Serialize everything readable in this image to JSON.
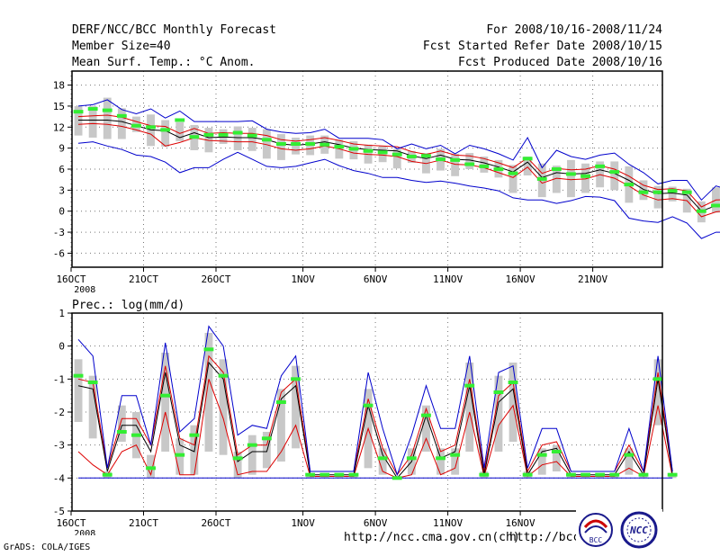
{
  "header": {
    "title": "DERF/NCC/BCC Monthly Forecast",
    "member_size": "Member Size=40",
    "variable": "Mean Surf. Temp.: °C Anom.",
    "period": "For 2008/10/16-2008/11/24",
    "started": "Fcst Started Refer Date 2008/10/15",
    "produced": "Fcst Produced Date 2008/10/16"
  },
  "footer": {
    "grads": "GrADS: COLA/IGES",
    "url1": "http://ncc.cma.gov.cn(ch)",
    "url2": "http://bcc.",
    "logo_left": "BCC",
    "logo_right": "NCC"
  },
  "colors": {
    "ensemble_box": "#c8c8c8",
    "median": "#33ee33",
    "mean": "#000000",
    "spread": "#dd0000",
    "envelope": "#0000cc"
  },
  "chart_data": [
    {
      "type": "box-plume",
      "title": "Mean Surf. Temp.: °C Anom.",
      "x_tick_labels": [
        "16OCT",
        "21OCT",
        "26OCT",
        "1NOV",
        "6NOV",
        "11NOV",
        "16NOV",
        "21NOV"
      ],
      "x_tick_days": [
        0,
        5,
        10,
        16,
        21,
        26,
        31,
        36
      ],
      "x_sub_label": "2008",
      "ylim": [
        -8,
        20
      ],
      "y_ticks": [
        -6,
        -3,
        0,
        3,
        6,
        9,
        12,
        15,
        18
      ],
      "mean": [
        13.0,
        13.0,
        13.0,
        12.8,
        12.2,
        11.6,
        11.5,
        10.5,
        11.2,
        10.5,
        10.6,
        10.5,
        10.5,
        10.2,
        9.6,
        9.4,
        9.6,
        9.9,
        9.5,
        9.0,
        8.8,
        8.7,
        8.6,
        7.9,
        7.5,
        8.0,
        7.4,
        7.3,
        6.9,
        6.3,
        5.6,
        7.0,
        4.8,
        5.5,
        5.3,
        5.4,
        5.9,
        5.4,
        4.4,
        3.1,
        2.5,
        2.6,
        2.3,
        0.0,
        0.8,
        0.9
      ],
      "upper": [
        13.5,
        13.6,
        13.7,
        13.4,
        12.8,
        12.2,
        12.1,
        11.1,
        11.8,
        11.1,
        11.2,
        11.1,
        11.1,
        10.8,
        10.2,
        10.0,
        10.2,
        10.5,
        10.1,
        9.6,
        9.4,
        9.3,
        9.2,
        8.5,
        8.1,
        8.6,
        8.0,
        7.9,
        7.5,
        6.9,
        6.2,
        7.6,
        5.4,
        6.1,
        5.9,
        6.0,
        6.5,
        6.0,
        5.0,
        3.7,
        3.1,
        3.2,
        2.9,
        0.6,
        1.6,
        1.7
      ],
      "lower": [
        12.4,
        12.5,
        12.4,
        12.1,
        11.6,
        11.0,
        9.3,
        9.8,
        10.5,
        10.1,
        10.0,
        9.9,
        9.9,
        9.5,
        8.9,
        8.7,
        8.9,
        9.3,
        8.9,
        8.3,
        8.1,
        8.0,
        7.8,
        7.1,
        6.8,
        7.3,
        6.7,
        6.6,
        6.2,
        5.5,
        4.8,
        6.3,
        4.0,
        4.7,
        4.5,
        4.6,
        5.2,
        4.7,
        3.6,
        2.3,
        1.6,
        1.8,
        1.5,
        -0.8,
        -0.1,
        0.1
      ],
      "max": [
        15.0,
        15.2,
        15.9,
        14.5,
        13.9,
        14.6,
        13.3,
        14.3,
        12.8,
        12.8,
        12.8,
        12.8,
        12.9,
        11.7,
        11.3,
        11.1,
        11.2,
        11.7,
        10.4,
        10.4,
        10.4,
        10.2,
        8.9,
        9.6,
        8.9,
        9.4,
        8.2,
        9.4,
        8.9,
        8.2,
        7.3,
        10.5,
        6.2,
        8.7,
        7.8,
        7.4,
        8.0,
        8.3,
        6.7,
        5.5,
        3.9,
        4.4,
        4.4,
        1.6,
        3.6,
        3.0
      ],
      "min": [
        9.7,
        9.9,
        9.3,
        8.8,
        8.0,
        7.8,
        7.0,
        5.5,
        6.2,
        6.2,
        7.4,
        8.4,
        7.4,
        6.4,
        6.2,
        6.4,
        6.9,
        7.4,
        6.5,
        5.8,
        5.4,
        4.8,
        4.8,
        4.4,
        4.1,
        4.3,
        4.0,
        3.6,
        3.3,
        2.9,
        1.9,
        1.6,
        1.6,
        1.1,
        1.5,
        2.1,
        2.0,
        1.5,
        -1.0,
        -1.4,
        -1.6,
        -0.8,
        -1.7,
        -3.9,
        -3.0,
        -3.0
      ],
      "median": [
        14.2,
        14.6,
        14.4,
        13.6,
        12.2,
        12.0,
        11.6,
        13.0,
        10.6,
        10.9,
        10.9,
        11.2,
        10.8,
        10.2,
        9.6,
        9.6,
        9.6,
        9.5,
        9.2,
        8.9,
        8.6,
        8.4,
        8.1,
        7.8,
        7.9,
        7.4,
        7.3,
        6.7,
        6.4,
        6.0,
        5.4,
        7.5,
        4.6,
        6.0,
        5.3,
        5.0,
        6.4,
        5.6,
        3.8,
        2.7,
        2.7,
        2.9,
        2.7,
        0.0,
        0.8,
        1.3
      ],
      "box_hi": [
        15.0,
        15.0,
        16.2,
        14.7,
        13.5,
        13.8,
        13.0,
        12.7,
        12.3,
        11.9,
        11.7,
        12.1,
        11.9,
        11.7,
        11.0,
        10.5,
        10.8,
        10.8,
        10.2,
        10.0,
        9.5,
        9.3,
        8.9,
        8.6,
        8.3,
        8.9,
        8.2,
        8.3,
        7.8,
        7.3,
        6.6,
        7.8,
        6.8,
        6.5,
        7.3,
        6.8,
        7.1,
        7.1,
        6.4,
        4.4,
        3.6,
        3.5,
        3.2,
        1.4,
        3.4,
        3.6
      ],
      "box_lo": [
        10.8,
        10.5,
        10.3,
        10.3,
        11.3,
        9.3,
        9.2,
        10.0,
        8.7,
        8.4,
        9.6,
        8.7,
        8.6,
        7.5,
        7.3,
        8.1,
        8.0,
        8.2,
        7.5,
        7.4,
        6.8,
        7.0,
        6.1,
        6.9,
        5.4,
        5.8,
        5.0,
        6.0,
        5.5,
        4.8,
        2.6,
        5.1,
        2.0,
        2.6,
        2.0,
        2.6,
        3.4,
        3.0,
        1.2,
        1.6,
        0.4,
        1.4,
        -0.2,
        -1.6,
        -0.2,
        -0.3
      ]
    },
    {
      "type": "box-plume",
      "title": "Prec.: log(mm/d)",
      "x_tick_labels": [
        "16OCT",
        "21OCT",
        "26OCT",
        "1NOV",
        "6NOV",
        "11NOV",
        "16NOV"
      ],
      "x_tick_days": [
        0,
        5,
        10,
        16,
        21,
        26,
        31
      ],
      "x_sub_label": "2008",
      "ylim": [
        -5,
        1
      ],
      "y_ticks": [
        -5,
        -4,
        -3,
        -2,
        -1,
        0,
        1
      ],
      "mean": [
        -1.2,
        -1.3,
        -3.8,
        -2.4,
        -2.4,
        -3.2,
        -0.8,
        -3.0,
        -3.2,
        -0.5,
        -1.0,
        -3.5,
        -3.2,
        -3.2,
        -1.6,
        -1.2,
        -3.9,
        -3.9,
        -3.9,
        -3.9,
        -1.8,
        -3.3,
        -4.0,
        -3.5,
        -2.1,
        -3.4,
        -3.2,
        -1.2,
        -3.9,
        -1.7,
        -1.3,
        -3.9,
        -3.2,
        -3.1,
        -3.9,
        -3.9,
        -3.9,
        -3.9,
        -3.2,
        -3.9,
        -1.0,
        -3.9
      ],
      "upper": [
        -1.0,
        -1.1,
        -3.7,
        -2.2,
        -2.2,
        -3.0,
        -0.6,
        -2.8,
        -3.0,
        -0.3,
        -0.8,
        -3.3,
        -3.0,
        -3.0,
        -1.4,
        -1.0,
        -3.8,
        -3.8,
        -3.8,
        -3.8,
        -1.6,
        -3.1,
        -3.9,
        -3.3,
        -1.9,
        -3.2,
        -3.0,
        -1.0,
        -3.8,
        -1.5,
        -1.1,
        -3.8,
        -3.0,
        -2.9,
        -3.8,
        -3.8,
        -3.8,
        -3.8,
        -3.0,
        -3.8,
        -0.8,
        -3.8
      ],
      "lower": [
        -3.2,
        -3.6,
        -3.9,
        -3.2,
        -3.0,
        -3.9,
        -2.0,
        -3.9,
        -3.9,
        -1.0,
        -2.2,
        -3.9,
        -3.8,
        -3.8,
        -3.2,
        -2.4,
        -3.95,
        -3.95,
        -3.95,
        -3.95,
        -2.5,
        -3.8,
        -4.0,
        -3.9,
        -2.8,
        -3.9,
        -3.7,
        -2.0,
        -3.95,
        -2.4,
        -1.8,
        -3.95,
        -3.6,
        -3.5,
        -3.95,
        -3.95,
        -3.95,
        -3.95,
        -3.7,
        -3.95,
        -1.8,
        -3.95
      ],
      "max": [
        0.2,
        -0.3,
        -3.7,
        -1.5,
        -1.5,
        -3.0,
        0.1,
        -2.6,
        -2.2,
        0.6,
        0.0,
        -2.7,
        -2.4,
        -2.5,
        -0.9,
        -0.3,
        -3.8,
        -3.8,
        -3.8,
        -3.8,
        -0.8,
        -2.5,
        -3.9,
        -2.7,
        -1.2,
        -2.5,
        -2.5,
        -0.3,
        -3.7,
        -0.8,
        -0.6,
        -3.7,
        -2.5,
        -2.5,
        -3.8,
        -3.8,
        -3.8,
        -3.8,
        -2.5,
        -3.8,
        -0.3,
        -3.8
      ],
      "min": [
        -4.0,
        -4.0,
        -4.0,
        -4.0,
        -4.0,
        -4.0,
        -4.0,
        -4.0,
        -4.0,
        -4.0,
        -4.0,
        -4.0,
        -4.0,
        -4.0,
        -4.0,
        -4.0,
        -4.0,
        -4.0,
        -4.0,
        -4.0,
        -4.0,
        -4.0,
        -4.0,
        -4.0,
        -4.0,
        -4.0,
        -4.0,
        -4.0,
        -4.0,
        -4.0,
        -4.0,
        -4.0,
        -4.0,
        -4.0,
        -4.0,
        -4.0,
        -4.0,
        -4.0,
        -4.0,
        -4.0,
        -4.0,
        -4.0
      ],
      "median": [
        -0.9,
        -1.1,
        -3.9,
        -2.6,
        -2.7,
        -3.7,
        -1.5,
        -3.3,
        -2.7,
        -0.1,
        -0.9,
        -3.4,
        -3.0,
        -2.8,
        -1.7,
        -1.0,
        -3.9,
        -3.9,
        -3.9,
        -3.9,
        -1.8,
        -3.4,
        -4.0,
        -3.4,
        -2.1,
        -3.4,
        -3.3,
        -1.2,
        -3.9,
        -1.4,
        -1.1,
        -3.9,
        -3.3,
        -3.2,
        -3.9,
        -3.9,
        -3.9,
        -3.9,
        -3.3,
        -3.9,
        -1.0,
        -3.9
      ],
      "box_hi": [
        -0.4,
        -0.9,
        -3.8,
        -1.8,
        -2.0,
        -3.3,
        -0.2,
        -2.8,
        -2.4,
        0.4,
        -0.4,
        -3.2,
        -2.7,
        -2.6,
        -1.3,
        -0.6,
        -3.85,
        -3.85,
        -3.85,
        -3.85,
        -1.3,
        -3.1,
        -3.95,
        -3.1,
        -1.8,
        -3.1,
        -3.1,
        -0.5,
        -3.8,
        -0.9,
        -0.5,
        -3.8,
        -3.1,
        -3.0,
        -3.85,
        -3.85,
        -3.85,
        -3.85,
        -3.1,
        -3.85,
        -0.4,
        -3.85
      ],
      "box_lo": [
        -2.3,
        -2.8,
        -4.0,
        -2.9,
        -3.4,
        -4.0,
        -3.2,
        -3.9,
        -3.9,
        -3.2,
        -3.3,
        -4.0,
        -3.9,
        -3.7,
        -3.5,
        -3.1,
        -4.0,
        -4.0,
        -4.0,
        -4.0,
        -3.7,
        -3.9,
        -4.0,
        -3.9,
        -3.2,
        -3.9,
        -3.9,
        -3.2,
        -4.0,
        -3.2,
        -2.9,
        -4.0,
        -3.9,
        -3.8,
        -4.0,
        -4.0,
        -4.0,
        -4.0,
        -3.9,
        -4.0,
        -2.4,
        -4.0
      ]
    }
  ]
}
